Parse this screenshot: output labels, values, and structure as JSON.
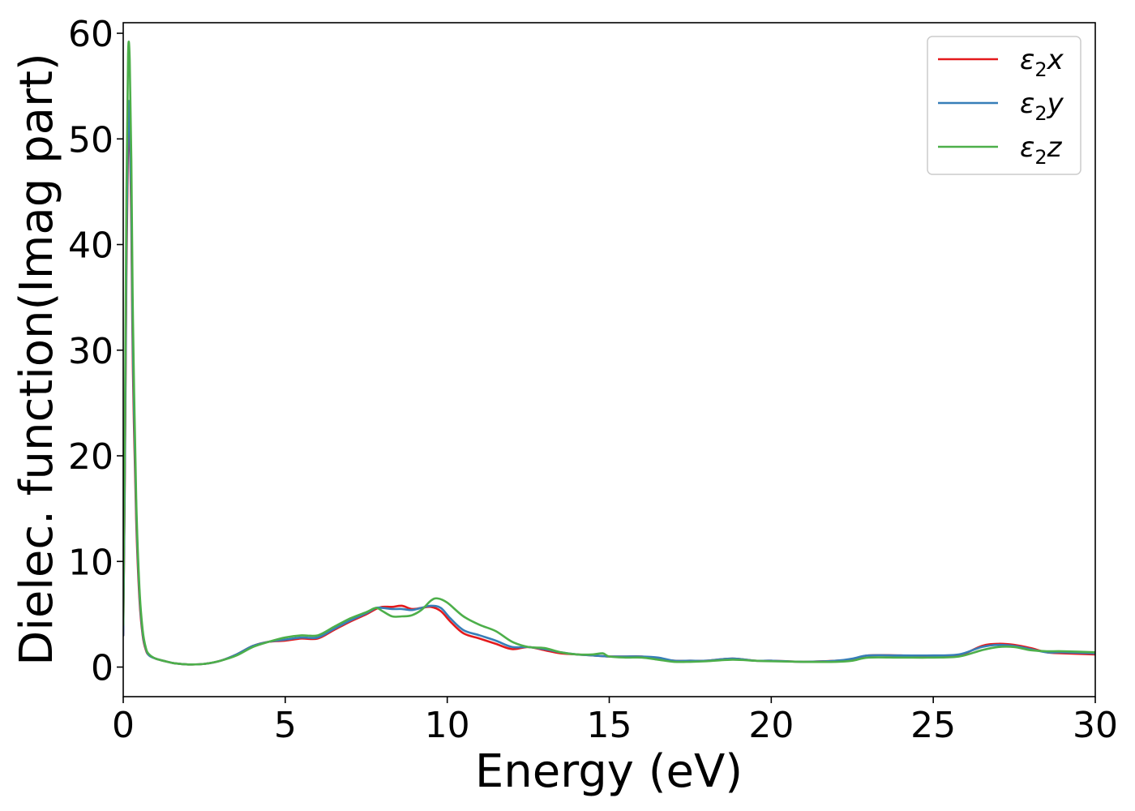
{
  "chart_data": {
    "type": "line",
    "xlabel": "Energy (eV)",
    "ylabel": "Dielec. function(Imag part)",
    "xlim": [
      0,
      30
    ],
    "ylim": [
      -2.8,
      61
    ],
    "xticks": [
      0,
      5,
      10,
      15,
      20,
      25,
      30
    ],
    "yticks": [
      0,
      10,
      20,
      30,
      40,
      50,
      60
    ],
    "grid": false,
    "legend_position": "top-right",
    "series": [
      {
        "name": "ε₂x",
        "legend_base": "ε",
        "legend_sub": "2",
        "legend_var": "x",
        "color": "#e41a1c",
        "x": [
          0,
          0.05,
          0.1,
          0.15,
          0.2,
          0.25,
          0.3,
          0.4,
          0.5,
          0.6,
          0.7,
          0.8,
          1.0,
          1.3,
          1.6,
          2.0,
          2.5,
          3.0,
          3.5,
          4.0,
          4.5,
          5.0,
          5.5,
          6.0,
          6.5,
          7.0,
          7.5,
          7.8,
          8.0,
          8.3,
          8.6,
          8.9,
          9.2,
          9.5,
          9.8,
          10.1,
          10.5,
          11.0,
          11.5,
          12.0,
          12.5,
          13.0,
          13.5,
          14.0,
          14.5,
          15.0,
          15.5,
          16.0,
          16.5,
          17.0,
          17.5,
          18.0,
          18.8,
          19.5,
          20.0,
          21.0,
          22.0,
          22.5,
          23.0,
          24.0,
          25.0,
          25.8,
          26.5,
          27.0,
          27.5,
          28.0,
          28.5,
          29.0,
          30.0
        ],
        "values": [
          3,
          18,
          38,
          50,
          50,
          42,
          28,
          14,
          6.5,
          3,
          1.6,
          1.1,
          0.8,
          0.55,
          0.35,
          0.25,
          0.3,
          0.6,
          1.2,
          2.0,
          2.4,
          2.5,
          2.7,
          2.7,
          3.5,
          4.3,
          5.0,
          5.5,
          5.7,
          5.7,
          5.8,
          5.5,
          5.6,
          5.7,
          5.3,
          4.3,
          3.2,
          2.7,
          2.2,
          1.7,
          1.9,
          1.6,
          1.3,
          1.2,
          1.1,
          1.0,
          1.0,
          1.0,
          0.8,
          0.6,
          0.6,
          0.6,
          0.8,
          0.6,
          0.6,
          0.5,
          0.6,
          0.7,
          1.1,
          1.1,
          1.0,
          1.1,
          2.0,
          2.2,
          2.1,
          1.8,
          1.4,
          1.3,
          1.2
        ]
      },
      {
        "name": "ε₂y",
        "legend_base": "ε",
        "legend_sub": "2",
        "legend_var": "y",
        "color": "#377eb8",
        "x": [
          0,
          0.05,
          0.1,
          0.15,
          0.2,
          0.25,
          0.3,
          0.4,
          0.5,
          0.6,
          0.7,
          0.8,
          1.0,
          1.3,
          1.6,
          2.0,
          2.5,
          3.0,
          3.5,
          4.0,
          4.5,
          5.0,
          5.5,
          6.0,
          6.5,
          7.0,
          7.5,
          7.8,
          8.0,
          8.3,
          8.6,
          8.9,
          9.2,
          9.5,
          9.8,
          10.1,
          10.5,
          11.0,
          11.5,
          12.0,
          12.5,
          13.0,
          13.5,
          14.0,
          14.5,
          15.0,
          15.5,
          16.0,
          16.5,
          17.0,
          17.5,
          18.0,
          18.8,
          19.5,
          20.0,
          21.0,
          22.0,
          22.5,
          23.0,
          24.0,
          25.0,
          25.8,
          26.5,
          27.0,
          27.5,
          28.0,
          28.5,
          29.0,
          30.0
        ],
        "values": [
          3,
          19,
          40,
          52.5,
          52,
          44,
          30,
          15,
          7,
          3.2,
          1.7,
          1.1,
          0.8,
          0.55,
          0.35,
          0.25,
          0.3,
          0.6,
          1.2,
          2.0,
          2.4,
          2.6,
          2.8,
          2.8,
          3.6,
          4.4,
          5.1,
          5.6,
          5.6,
          5.5,
          5.5,
          5.4,
          5.6,
          5.8,
          5.6,
          4.6,
          3.5,
          3.0,
          2.5,
          1.9,
          1.9,
          1.7,
          1.4,
          1.2,
          1.1,
          1.0,
          1.0,
          1.0,
          0.9,
          0.6,
          0.6,
          0.6,
          0.8,
          0.6,
          0.6,
          0.5,
          0.6,
          0.8,
          1.1,
          1.1,
          1.1,
          1.2,
          1.9,
          2.1,
          2.0,
          1.7,
          1.4,
          1.4,
          1.3
        ]
      },
      {
        "name": "ε₂z",
        "legend_base": "ε",
        "legend_sub": "2",
        "legend_var": "z",
        "color": "#4daf4a",
        "x": [
          0,
          0.05,
          0.1,
          0.15,
          0.2,
          0.25,
          0.3,
          0.4,
          0.5,
          0.6,
          0.7,
          0.8,
          1.0,
          1.3,
          1.6,
          2.0,
          2.5,
          3.0,
          3.5,
          4.0,
          4.5,
          5.0,
          5.5,
          6.0,
          6.5,
          7.0,
          7.5,
          7.8,
          8.0,
          8.3,
          8.6,
          8.9,
          9.2,
          9.5,
          9.7,
          10.0,
          10.5,
          11.0,
          11.5,
          12.0,
          12.5,
          13.0,
          13.5,
          14.0,
          14.5,
          14.8,
          15.0,
          15.5,
          16.0,
          16.5,
          17.0,
          17.5,
          18.0,
          18.8,
          19.5,
          20.0,
          21.0,
          22.0,
          22.5,
          23.0,
          24.0,
          25.0,
          25.8,
          26.5,
          27.0,
          27.5,
          28.0,
          28.5,
          29.0,
          30.0
        ],
        "values": [
          4,
          22,
          45,
          58,
          57.5,
          48,
          33,
          16,
          7.5,
          3.5,
          1.8,
          1.2,
          0.8,
          0.55,
          0.35,
          0.25,
          0.3,
          0.6,
          1.1,
          1.9,
          2.4,
          2.8,
          3.0,
          3.0,
          3.8,
          4.6,
          5.2,
          5.6,
          5.3,
          4.8,
          4.8,
          4.9,
          5.4,
          6.3,
          6.5,
          6.1,
          4.8,
          4.0,
          3.4,
          2.4,
          1.9,
          1.8,
          1.4,
          1.2,
          1.2,
          1.3,
          1.0,
          0.9,
          0.9,
          0.7,
          0.5,
          0.5,
          0.55,
          0.7,
          0.6,
          0.55,
          0.5,
          0.5,
          0.6,
          0.9,
          0.9,
          0.9,
          1.0,
          1.6,
          1.9,
          1.9,
          1.6,
          1.5,
          1.5,
          1.4
        ]
      }
    ]
  }
}
